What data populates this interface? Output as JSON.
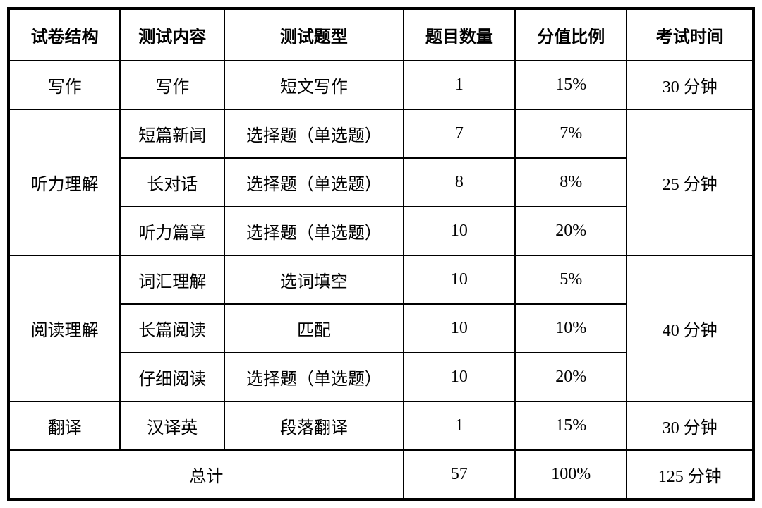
{
  "table": {
    "headers": {
      "structure": "试卷结构",
      "content": "测试内容",
      "type": "测试题型",
      "count": "题目数量",
      "score": "分值比例",
      "time": "考试时间"
    },
    "sections": {
      "writing": {
        "structure": "写作",
        "content": "写作",
        "type": "短文写作",
        "count": "1",
        "score": "15%",
        "time": "30 分钟"
      },
      "listening": {
        "structure": "听力理解",
        "time": "25 分钟",
        "rows": [
          {
            "content": "短篇新闻",
            "type": "选择题（单选题）",
            "count": "7",
            "score": "7%"
          },
          {
            "content": "长对话",
            "type": "选择题（单选题）",
            "count": "8",
            "score": "8%"
          },
          {
            "content": "听力篇章",
            "type": "选择题（单选题）",
            "count": "10",
            "score": "20%"
          }
        ]
      },
      "reading": {
        "structure": "阅读理解",
        "time": "40 分钟",
        "rows": [
          {
            "content": "词汇理解",
            "type": "选词填空",
            "count": "10",
            "score": "5%"
          },
          {
            "content": "长篇阅读",
            "type": "匹配",
            "count": "10",
            "score": "10%"
          },
          {
            "content": "仔细阅读",
            "type": "选择题（单选题）",
            "count": "10",
            "score": "20%"
          }
        ]
      },
      "translation": {
        "structure": "翻译",
        "content": "汉译英",
        "type": "段落翻译",
        "count": "1",
        "score": "15%",
        "time": "30 分钟"
      },
      "total": {
        "label": "总计",
        "count": "57",
        "score": "100%",
        "time": "125 分钟"
      }
    },
    "styling": {
      "border_color": "#000000",
      "outer_border_width": 4,
      "inner_border_width": 2,
      "background_color": "#ffffff",
      "font_size": 24,
      "header_font_weight": "bold",
      "text_color": "#000000",
      "cell_padding_vertical": 16,
      "cell_padding_horizontal": 8,
      "column_widths_pct": [
        15,
        14,
        24,
        15,
        15,
        17
      ]
    }
  }
}
